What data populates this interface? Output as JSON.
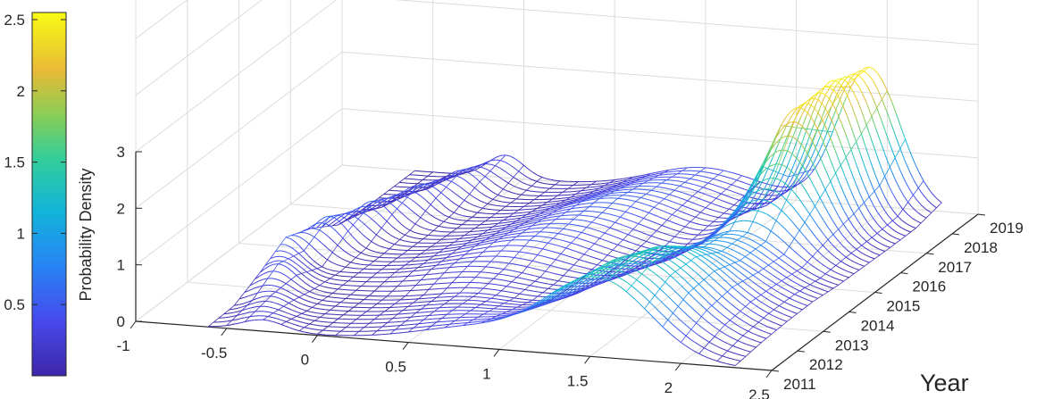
{
  "chart_data": {
    "type": "surface",
    "title": "",
    "xlabel": "",
    "ylabel": "Year",
    "zlabel": "Probability Density",
    "x_ticks": [
      "-1",
      "-0.5",
      "0",
      "0.5",
      "1",
      "1.5",
      "2",
      "2.5"
    ],
    "y_ticks": [
      "2011",
      "2012",
      "2013",
      "2014",
      "2015",
      "2016",
      "2017",
      "2018",
      "2019"
    ],
    "z_ticks": [
      "0",
      "1",
      "2",
      "3"
    ],
    "colorbar_ticks": [
      "0.5",
      "1",
      "1.5",
      "2",
      "2.5"
    ],
    "xlim": [
      -1,
      2.5
    ],
    "ylim": [
      2011,
      2019
    ],
    "zlim": [
      0,
      3
    ],
    "clim": [
      0,
      2.55
    ],
    "colormap": "parula",
    "grid": true,
    "colorbar": "left",
    "series": [
      {
        "year": 2011,
        "peaks": [
          {
            "x": -0.3,
            "h": 0.2,
            "w": 0.12
          },
          {
            "x": 0.9,
            "h": 0.35,
            "w": 0.35
          },
          {
            "x": 1.55,
            "h": 1.35,
            "w": 0.28
          }
        ]
      },
      {
        "year": 2012,
        "peaks": [
          {
            "x": -0.4,
            "h": 0.25,
            "w": 0.1
          },
          {
            "x": 0.7,
            "h": 0.25,
            "w": 0.3
          },
          {
            "x": 1.6,
            "h": 1.45,
            "w": 0.3
          }
        ]
      },
      {
        "year": 2013,
        "peaks": [
          {
            "x": -0.5,
            "h": 0.45,
            "w": 0.1
          },
          {
            "x": 0.6,
            "h": 0.2,
            "w": 0.25
          },
          {
            "x": 1.65,
            "h": 1.3,
            "w": 0.3
          }
        ]
      },
      {
        "year": 2014,
        "peaks": [
          {
            "x": -0.6,
            "h": 0.55,
            "w": 0.1
          },
          {
            "x": 0.5,
            "h": 0.3,
            "w": 0.3
          },
          {
            "x": 1.7,
            "h": 0.95,
            "w": 0.3
          }
        ]
      },
      {
        "year": 2015,
        "peaks": [
          {
            "x": -0.5,
            "h": 0.6,
            "w": 0.1
          },
          {
            "x": 0.6,
            "h": 0.45,
            "w": 0.3
          },
          {
            "x": 1.75,
            "h": 0.9,
            "w": 0.25
          }
        ]
      },
      {
        "year": 2016,
        "peaks": [
          {
            "x": -0.4,
            "h": 0.55,
            "w": 0.1
          },
          {
            "x": 0.7,
            "h": 0.5,
            "w": 0.3
          },
          {
            "x": 1.8,
            "h": 1.5,
            "w": 0.2
          }
        ]
      },
      {
        "year": 2017,
        "peaks": [
          {
            "x": -0.3,
            "h": 0.5,
            "w": 0.1
          },
          {
            "x": 0.8,
            "h": 0.55,
            "w": 0.3
          },
          {
            "x": 1.8,
            "h": 2.4,
            "w": 0.18
          }
        ]
      },
      {
        "year": 2018,
        "peaks": [
          {
            "x": -0.2,
            "h": 0.45,
            "w": 0.1
          },
          {
            "x": 0.9,
            "h": 0.5,
            "w": 0.3
          },
          {
            "x": 1.85,
            "h": 2.55,
            "w": 0.16
          }
        ]
      },
      {
        "year": 2019,
        "peaks": [
          {
            "x": -0.1,
            "h": 0.4,
            "w": 0.1
          },
          {
            "x": 1.0,
            "h": 0.45,
            "w": 0.3
          },
          {
            "x": 1.9,
            "h": 2.45,
            "w": 0.17
          }
        ]
      }
    ]
  }
}
